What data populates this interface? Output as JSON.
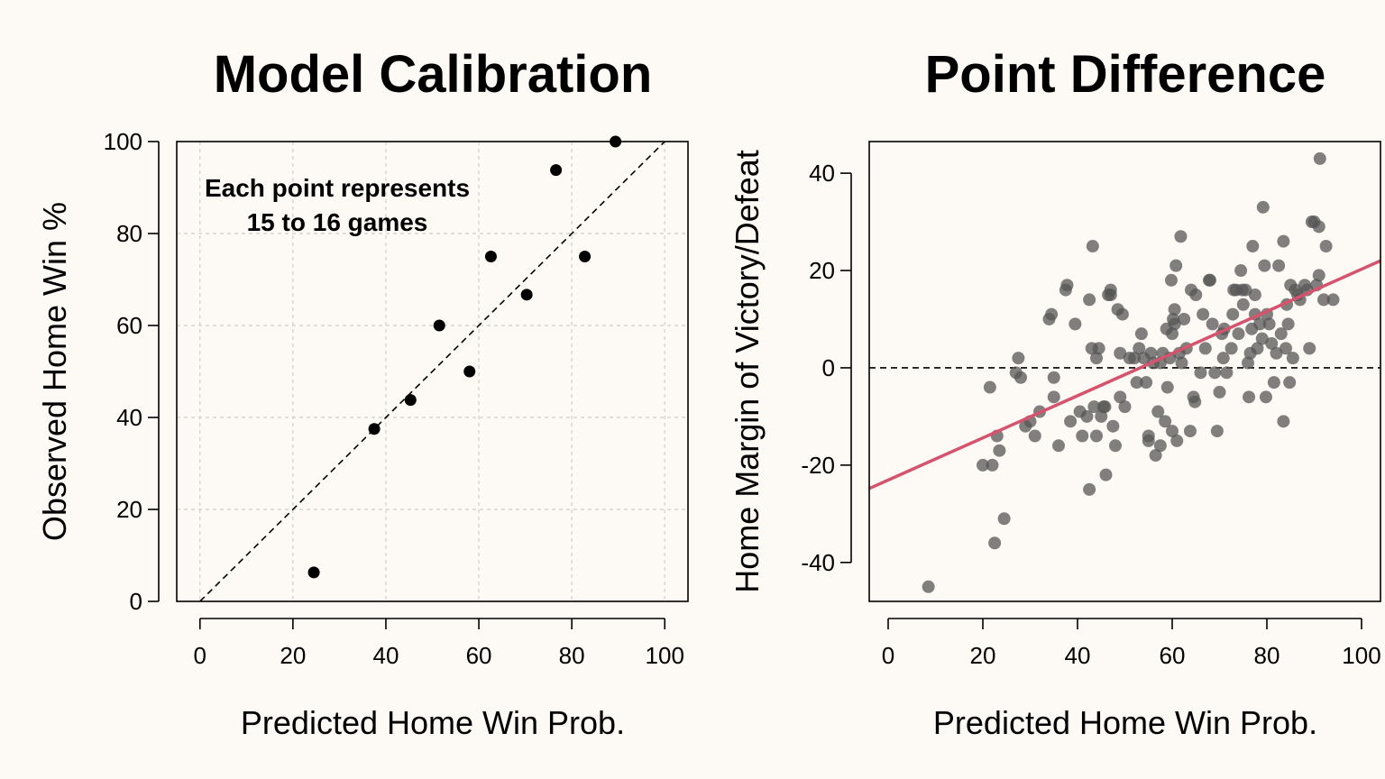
{
  "chart_data": [
    {
      "type": "scatter",
      "title": "Model Calibration",
      "xlabel": "Predicted Home Win Prob.",
      "ylabel": "Observed Home Win %",
      "xlim": [
        -5,
        105
      ],
      "ylim": [
        0,
        100
      ],
      "xticks": [
        0,
        20,
        40,
        60,
        80,
        100
      ],
      "yticks": [
        0,
        20,
        40,
        60,
        80,
        100
      ],
      "grid": true,
      "annotation": [
        "Each point represents",
        "15 to 16 games"
      ],
      "reference_line": {
        "style": "dashed",
        "from": [
          0,
          0
        ],
        "to": [
          100,
          100
        ]
      },
      "series": [
        {
          "color": "#000000",
          "points": [
            [
              24.5,
              6.3
            ],
            [
              37.5,
              37.5
            ],
            [
              45.3,
              43.8
            ],
            [
              51.5,
              60.0
            ],
            [
              58.0,
              50.0
            ],
            [
              62.6,
              75.0
            ],
            [
              70.3,
              66.7
            ],
            [
              76.6,
              93.8
            ],
            [
              82.8,
              75.0
            ],
            [
              89.4,
              100.0
            ]
          ]
        }
      ]
    },
    {
      "type": "scatter",
      "title": "Point Difference",
      "xlabel": "Predicted Home Win Prob.",
      "ylabel": "Home Margin of Victory/Defeat",
      "xlim": [
        -4,
        104
      ],
      "ylim": [
        -48,
        46.5
      ],
      "xticks": [
        0,
        20,
        40,
        60,
        80,
        100
      ],
      "yticks": [
        -40,
        -20,
        0,
        20,
        40
      ],
      "grid": false,
      "zero_line": {
        "style": "dashed",
        "y": 0
      },
      "fit_line": {
        "color": "#d6536d",
        "x": [
          -4,
          104
        ],
        "y": [
          -24.8,
          22.0
        ]
      },
      "series": [
        {
          "color": "#555555",
          "opacity": 0.75,
          "points": [
            [
              8.5,
              -45
            ],
            [
              20,
              -20
            ],
            [
              21.5,
              -4
            ],
            [
              22,
              -20
            ],
            [
              22.5,
              -36
            ],
            [
              23,
              -14
            ],
            [
              23.5,
              -17
            ],
            [
              24.5,
              -31
            ],
            [
              27,
              -1
            ],
            [
              27.5,
              2
            ],
            [
              28,
              -2
            ],
            [
              29,
              -12
            ],
            [
              30,
              -11
            ],
            [
              31,
              -14
            ],
            [
              32,
              -9
            ],
            [
              34,
              10
            ],
            [
              34.5,
              11
            ],
            [
              35,
              -2
            ],
            [
              35,
              -6
            ],
            [
              36,
              -16
            ],
            [
              37.5,
              16
            ],
            [
              37.8,
              17
            ],
            [
              38.5,
              -11
            ],
            [
              39.5,
              9
            ],
            [
              40.5,
              -9
            ],
            [
              41,
              -14
            ],
            [
              42,
              -10
            ],
            [
              42.5,
              14
            ],
            [
              42.5,
              -25
            ],
            [
              43,
              4
            ],
            [
              43.2,
              25
            ],
            [
              43.5,
              -8
            ],
            [
              44,
              2
            ],
            [
              44,
              -14
            ],
            [
              44.5,
              4
            ],
            [
              45,
              -10
            ],
            [
              45.5,
              -8
            ],
            [
              45.8,
              -8
            ],
            [
              46,
              -22
            ],
            [
              46.5,
              15
            ],
            [
              47,
              15
            ],
            [
              47,
              16
            ],
            [
              47.5,
              -12
            ],
            [
              48,
              -16
            ],
            [
              48.5,
              12
            ],
            [
              49,
              3
            ],
            [
              49,
              -6
            ],
            [
              49.5,
              11
            ],
            [
              50,
              -8
            ],
            [
              51,
              2
            ],
            [
              52,
              2
            ],
            [
              52.5,
              -3
            ],
            [
              53,
              4
            ],
            [
              53.5,
              7
            ],
            [
              54,
              2
            ],
            [
              54.5,
              -3
            ],
            [
              55,
              -15
            ],
            [
              55,
              -14
            ],
            [
              55.5,
              3
            ],
            [
              56,
              1
            ],
            [
              56.5,
              -18
            ],
            [
              57,
              -9
            ],
            [
              57.5,
              -16
            ],
            [
              57.5,
              1
            ],
            [
              58,
              3
            ],
            [
              58.5,
              -11
            ],
            [
              58.8,
              8
            ],
            [
              59,
              -4
            ],
            [
              59.5,
              2
            ],
            [
              59.8,
              18
            ],
            [
              60,
              7
            ],
            [
              60,
              -13
            ],
            [
              60.2,
              10
            ],
            [
              60.5,
              9
            ],
            [
              60.5,
              12
            ],
            [
              60.8,
              21
            ],
            [
              61,
              -15
            ],
            [
              61.5,
              3
            ],
            [
              61.8,
              27
            ],
            [
              62,
              1
            ],
            [
              62.5,
              10
            ],
            [
              63,
              4
            ],
            [
              63.8,
              -13
            ],
            [
              64,
              16
            ],
            [
              64.5,
              -6
            ],
            [
              64.8,
              -7
            ],
            [
              65,
              15
            ],
            [
              66,
              -1
            ],
            [
              66.5,
              11
            ],
            [
              67,
              4
            ],
            [
              67.8,
              18
            ],
            [
              68,
              18
            ],
            [
              68.5,
              9
            ],
            [
              69,
              -1
            ],
            [
              69.5,
              -13
            ],
            [
              70,
              -5
            ],
            [
              70.5,
              7
            ],
            [
              70.8,
              2
            ],
            [
              71,
              8
            ],
            [
              71.5,
              -1
            ],
            [
              72.5,
              4
            ],
            [
              72.8,
              11
            ],
            [
              73,
              16
            ],
            [
              73.5,
              16
            ],
            [
              74,
              7
            ],
            [
              74.5,
              20
            ],
            [
              74.8,
              16
            ],
            [
              75,
              13
            ],
            [
              75.5,
              16
            ],
            [
              76,
              1
            ],
            [
              76.2,
              -6
            ],
            [
              76.5,
              3
            ],
            [
              76.8,
              8
            ],
            [
              77,
              25
            ],
            [
              77.5,
              11
            ],
            [
              77.5,
              15
            ],
            [
              78,
              4
            ],
            [
              78.5,
              9
            ],
            [
              79,
              6
            ],
            [
              79.2,
              33
            ],
            [
              79.5,
              21
            ],
            [
              79.8,
              -6
            ],
            [
              80,
              11
            ],
            [
              80.5,
              9
            ],
            [
              81,
              5
            ],
            [
              81.5,
              -3
            ],
            [
              82,
              3
            ],
            [
              82.5,
              21
            ],
            [
              83,
              7
            ],
            [
              83.5,
              -11
            ],
            [
              83.5,
              26
            ],
            [
              84,
              4
            ],
            [
              84.2,
              13
            ],
            [
              84.5,
              9
            ],
            [
              84.8,
              -3
            ],
            [
              85,
              17
            ],
            [
              85.5,
              2
            ],
            [
              86,
              16
            ],
            [
              86.5,
              15
            ],
            [
              87,
              14
            ],
            [
              88,
              17
            ],
            [
              88.5,
              16
            ],
            [
              89,
              4
            ],
            [
              89.5,
              30
            ],
            [
              90,
              30
            ],
            [
              90.5,
              17
            ],
            [
              91,
              29
            ],
            [
              91,
              19
            ],
            [
              91.2,
              43
            ],
            [
              92,
              14
            ],
            [
              92.5,
              25
            ],
            [
              94,
              14
            ]
          ]
        }
      ]
    }
  ]
}
